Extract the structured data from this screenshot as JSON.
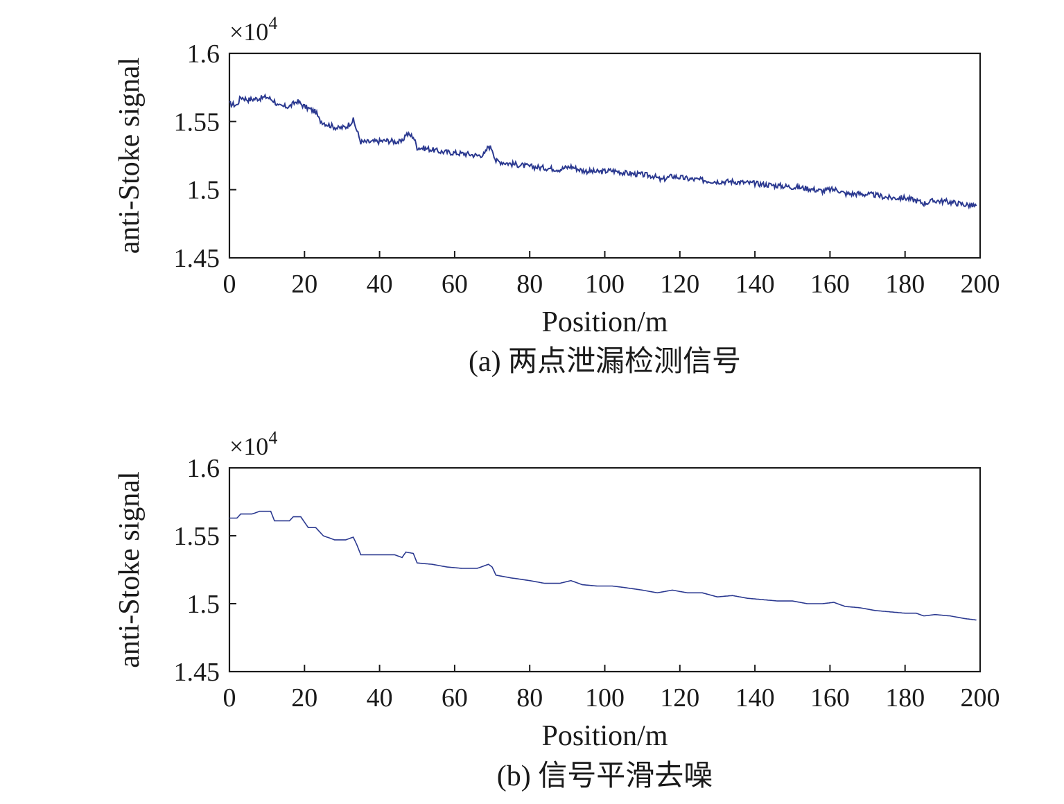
{
  "chart_data": [
    {
      "type": "line",
      "caption": "(a) 两点泄漏检测信号",
      "xlabel": "Position/m",
      "ylabel": "anti-Stoke signal",
      "y_exponent": "×10",
      "y_exponent_power": "4",
      "xlim": [
        0,
        200
      ],
      "ylim": [
        1.45,
        1.6
      ],
      "xticks": [
        "0",
        "20",
        "40",
        "60",
        "80",
        "100",
        "120",
        "140",
        "160",
        "180",
        "200"
      ],
      "yticks": [
        "1.6",
        "1.55",
        "1.5",
        "1.45"
      ],
      "noise": 0.002,
      "series": [
        {
          "color": "#2b3990",
          "points": [
            [
              0,
              1.563
            ],
            [
              2,
              1.562
            ],
            [
              3,
              1.568
            ],
            [
              5,
              1.566
            ],
            [
              8,
              1.567
            ],
            [
              10,
              1.568
            ],
            [
              12,
              1.565
            ],
            [
              13,
              1.561
            ],
            [
              16,
              1.561
            ],
            [
              18,
              1.565
            ],
            [
              20,
              1.561
            ],
            [
              23,
              1.557
            ],
            [
              24,
              1.551
            ],
            [
              26,
              1.548
            ],
            [
              29,
              1.545
            ],
            [
              31,
              1.546
            ],
            [
              33,
              1.551
            ],
            [
              34,
              1.543
            ],
            [
              35,
              1.535
            ],
            [
              38,
              1.535
            ],
            [
              42,
              1.536
            ],
            [
              45,
              1.535
            ],
            [
              46,
              1.535
            ],
            [
              47,
              1.541
            ],
            [
              49,
              1.539
            ],
            [
              50,
              1.531
            ],
            [
              53,
              1.53
            ],
            [
              56,
              1.528
            ],
            [
              60,
              1.527
            ],
            [
              64,
              1.526
            ],
            [
              66,
              1.525
            ],
            [
              68,
              1.526
            ],
            [
              69,
              1.532
            ],
            [
              70,
              1.53
            ],
            [
              71,
              1.521
            ],
            [
              75,
              1.519
            ],
            [
              80,
              1.517
            ],
            [
              84,
              1.516
            ],
            [
              88,
              1.515
            ],
            [
              91,
              1.517
            ],
            [
              94,
              1.514
            ],
            [
              98,
              1.513
            ],
            [
              102,
              1.514
            ],
            [
              106,
              1.512
            ],
            [
              110,
              1.511
            ],
            [
              113,
              1.51
            ],
            [
              115,
              1.507
            ],
            [
              118,
              1.51
            ],
            [
              122,
              1.508
            ],
            [
              126,
              1.507
            ],
            [
              130,
              1.506
            ],
            [
              134,
              1.506
            ],
            [
              138,
              1.505
            ],
            [
              142,
              1.504
            ],
            [
              146,
              1.503
            ],
            [
              150,
              1.502
            ],
            [
              154,
              1.501
            ],
            [
              158,
              1.499
            ],
            [
              160,
              1.5
            ],
            [
              162,
              1.5
            ],
            [
              164,
              1.497
            ],
            [
              168,
              1.497
            ],
            [
              172,
              1.496
            ],
            [
              176,
              1.494
            ],
            [
              180,
              1.494
            ],
            [
              183,
              1.492
            ],
            [
              185,
              1.49
            ],
            [
              188,
              1.492
            ],
            [
              192,
              1.491
            ],
            [
              196,
              1.489
            ],
            [
              199,
              1.488
            ]
          ]
        }
      ]
    },
    {
      "type": "line",
      "caption": "(b) 信号平滑去噪",
      "xlabel": "Position/m",
      "ylabel": "anti-Stoke signal",
      "y_exponent": "×10",
      "y_exponent_power": "4",
      "xlim": [
        0,
        200
      ],
      "ylim": [
        1.45,
        1.6
      ],
      "xticks": [
        "0",
        "20",
        "40",
        "60",
        "80",
        "100",
        "120",
        "140",
        "160",
        "180",
        "200"
      ],
      "yticks": [
        "1.6",
        "1.55",
        "1.5",
        "1.45"
      ],
      "noise": 0,
      "series": [
        {
          "color": "#2b3990",
          "points": [
            [
              0,
              1.563
            ],
            [
              2,
              1.563
            ],
            [
              3,
              1.566
            ],
            [
              6,
              1.566
            ],
            [
              8,
              1.568
            ],
            [
              11,
              1.568
            ],
            [
              12,
              1.561
            ],
            [
              16,
              1.561
            ],
            [
              17,
              1.564
            ],
            [
              19,
              1.564
            ],
            [
              21,
              1.556
            ],
            [
              23,
              1.556
            ],
            [
              25,
              1.55
            ],
            [
              28,
              1.547
            ],
            [
              31,
              1.547
            ],
            [
              33,
              1.549
            ],
            [
              34,
              1.543
            ],
            [
              35,
              1.536
            ],
            [
              40,
              1.536
            ],
            [
              44,
              1.536
            ],
            [
              46,
              1.534
            ],
            [
              47,
              1.538
            ],
            [
              49,
              1.537
            ],
            [
              50,
              1.53
            ],
            [
              54,
              1.529
            ],
            [
              58,
              1.527
            ],
            [
              62,
              1.526
            ],
            [
              66,
              1.526
            ],
            [
              69,
              1.529
            ],
            [
              70,
              1.527
            ],
            [
              71,
              1.521
            ],
            [
              75,
              1.519
            ],
            [
              80,
              1.517
            ],
            [
              84,
              1.515
            ],
            [
              88,
              1.515
            ],
            [
              91,
              1.517
            ],
            [
              94,
              1.514
            ],
            [
              98,
              1.513
            ],
            [
              102,
              1.513
            ],
            [
              105,
              1.512
            ],
            [
              110,
              1.51
            ],
            [
              114,
              1.508
            ],
            [
              118,
              1.51
            ],
            [
              122,
              1.508
            ],
            [
              126,
              1.508
            ],
            [
              130,
              1.505
            ],
            [
              134,
              1.506
            ],
            [
              138,
              1.504
            ],
            [
              142,
              1.503
            ],
            [
              146,
              1.502
            ],
            [
              150,
              1.502
            ],
            [
              154,
              1.5
            ],
            [
              158,
              1.5
            ],
            [
              161,
              1.501
            ],
            [
              164,
              1.498
            ],
            [
              168,
              1.497
            ],
            [
              172,
              1.495
            ],
            [
              176,
              1.494
            ],
            [
              180,
              1.493
            ],
            [
              183,
              1.493
            ],
            [
              185,
              1.491
            ],
            [
              188,
              1.492
            ],
            [
              192,
              1.491
            ],
            [
              196,
              1.489
            ],
            [
              199,
              1.488
            ]
          ]
        }
      ]
    }
  ]
}
